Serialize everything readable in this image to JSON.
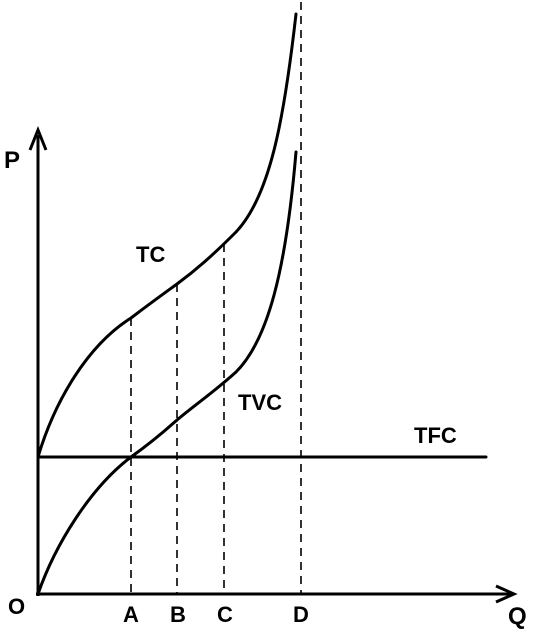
{
  "diagram": {
    "axis_labels": {
      "y": "P",
      "x": "Q",
      "origin": "O"
    },
    "curve_labels": {
      "tc": "TC",
      "tvc": "TVC",
      "tfc": "TFC"
    },
    "quantity_labels": {
      "a": "A",
      "b": "B",
      "c": "C",
      "d": "D"
    },
    "colors": {
      "ink": "#000000",
      "background": "#ffffff"
    }
  }
}
